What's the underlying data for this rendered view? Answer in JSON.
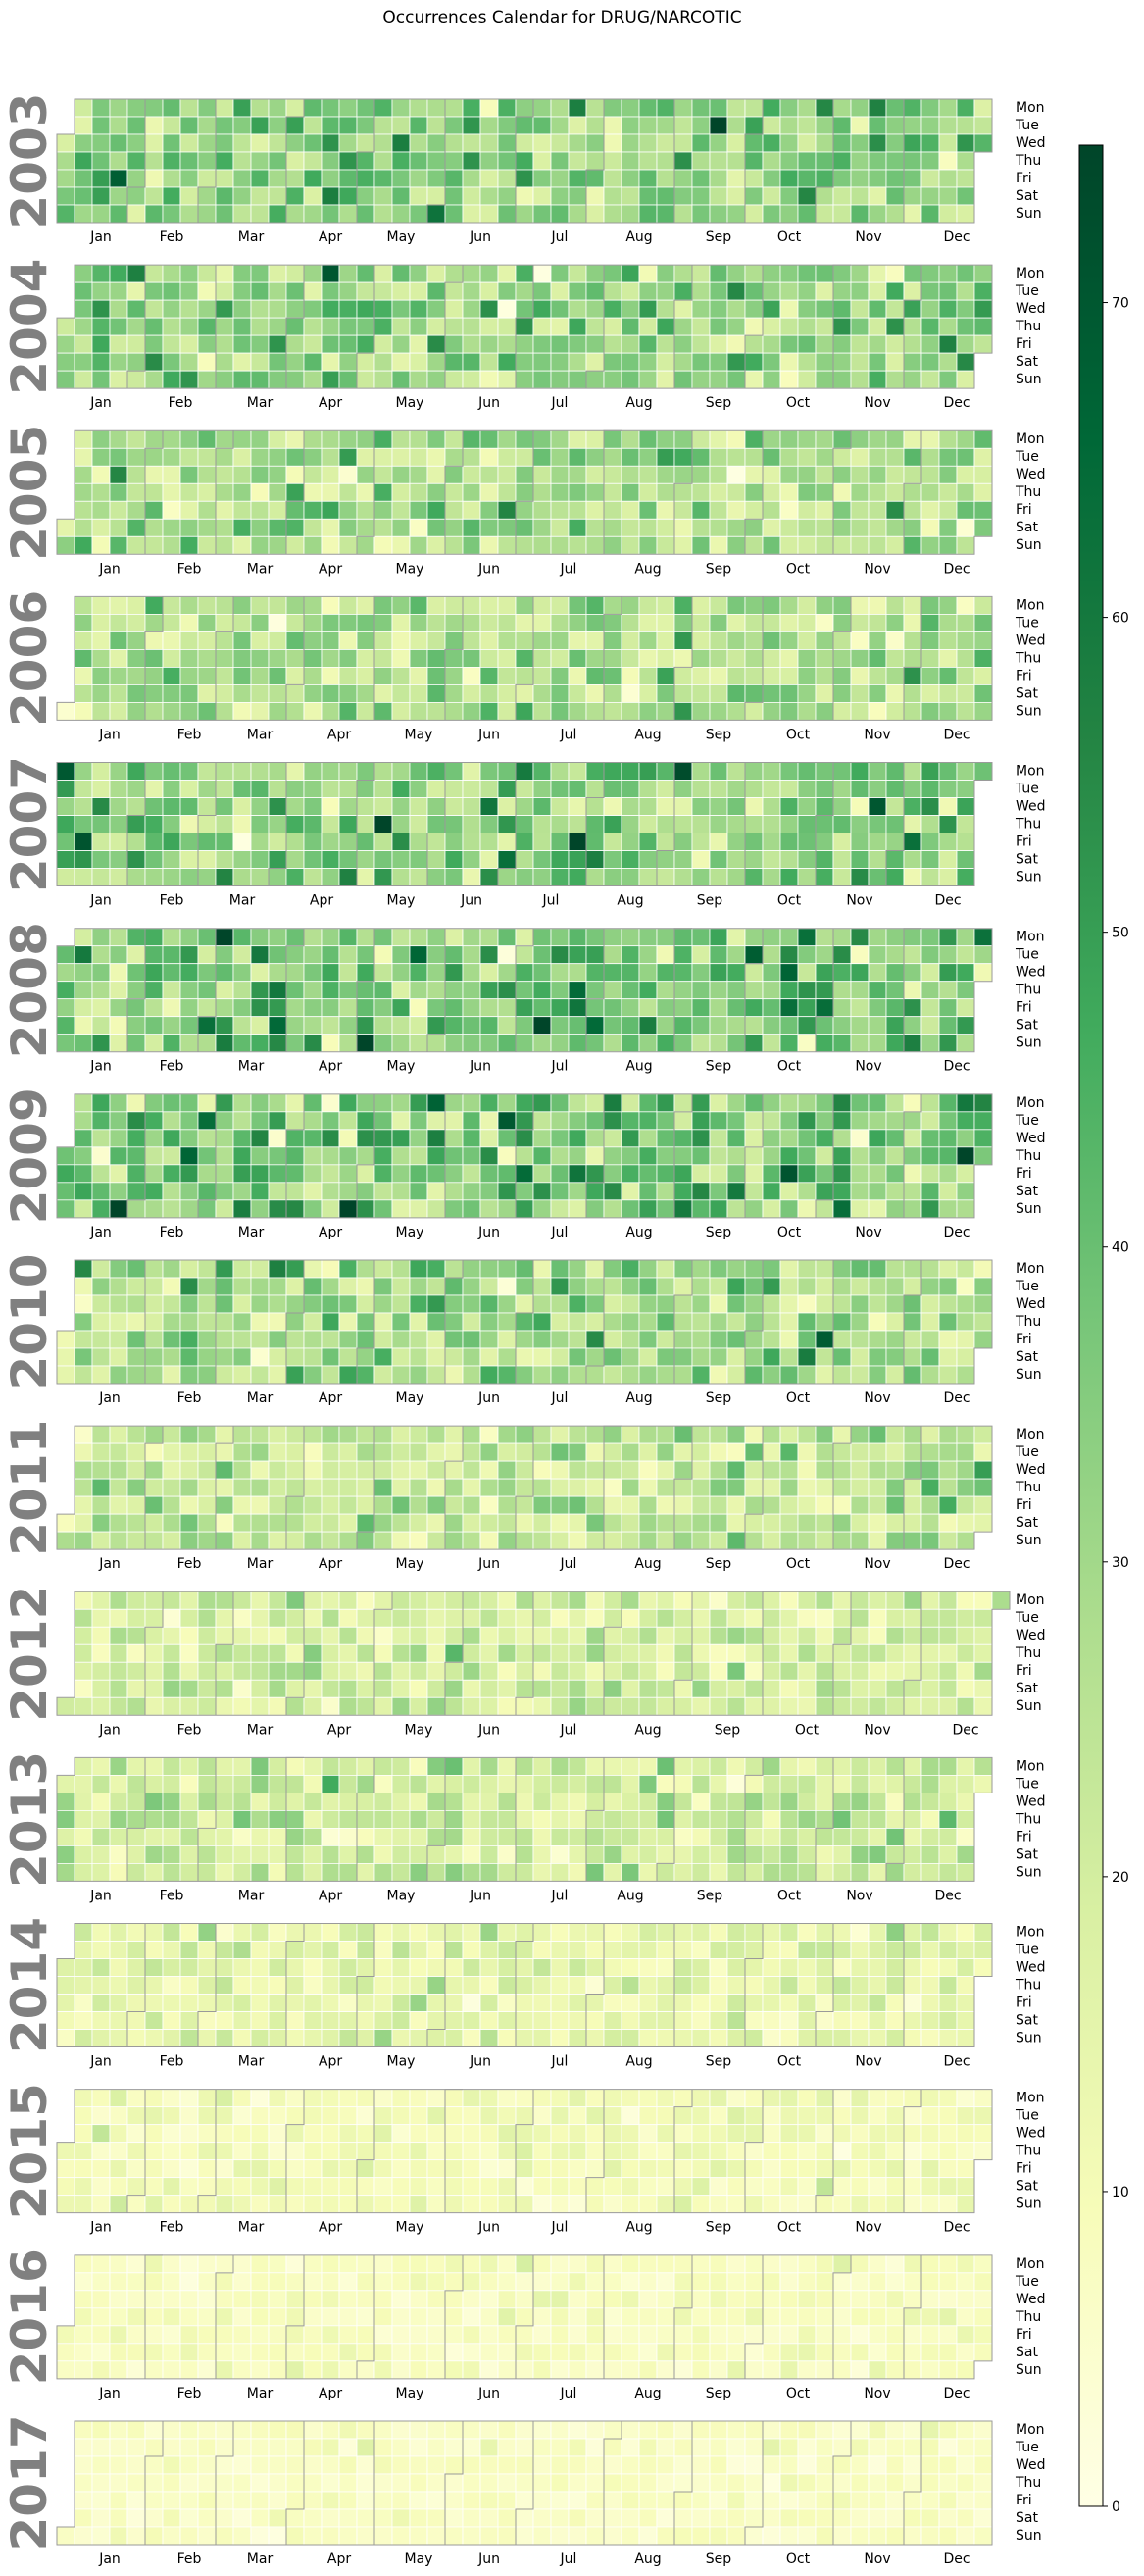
{
  "title": "Occurrences Calendar for DRUG/NARCOTIC",
  "chart_data": {
    "type": "heatmap",
    "title": "Occurrences Calendar for DRUG/NARCOTIC",
    "years": [
      "2003",
      "2004",
      "2005",
      "2006",
      "2007",
      "2008",
      "2009",
      "2010",
      "2011",
      "2012",
      "2013",
      "2014",
      "2015",
      "2016",
      "2017"
    ],
    "months": [
      "Jan",
      "Feb",
      "Mar",
      "Apr",
      "May",
      "Jun",
      "Jul",
      "Aug",
      "Sep",
      "Oct",
      "Nov",
      "Dec"
    ],
    "weekdays": [
      "Mon",
      "Tue",
      "Wed",
      "Thu",
      "Fri",
      "Sat",
      "Sun"
    ],
    "colorbar": {
      "min": 0,
      "max": 75,
      "ticks": [
        0,
        10,
        20,
        30,
        40,
        50,
        60,
        70
      ]
    },
    "colormap": [
      "#ffffe5",
      "#f7fcb9",
      "#d9f0a3",
      "#addd8e",
      "#78c679",
      "#41ab5d",
      "#238443",
      "#006837",
      "#004529"
    ],
    "yearly_mean_occurrences": [
      33,
      32,
      27,
      27,
      32,
      36,
      36,
      28,
      24,
      19,
      20,
      15,
      10,
      8,
      7
    ],
    "max_daily_occurrences": 76
  }
}
